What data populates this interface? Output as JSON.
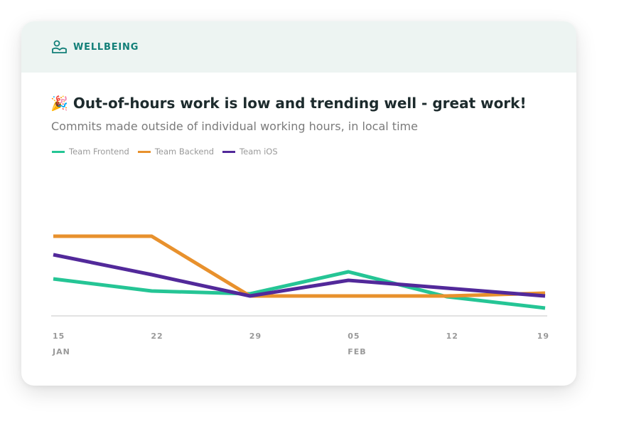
{
  "header": {
    "label": "WELLBEING",
    "icon": "person-landscape-icon",
    "accent": "#127f78"
  },
  "title": {
    "emoji": "🎉",
    "text": "Out-of-hours work is low and trending well - great work!"
  },
  "subtitle": "Commits made outside of individual working hours, in local time",
  "chart_data": {
    "type": "line",
    "title": "Out-of-hours work is low and trending well - great work!",
    "subtitle": "Commits made outside of individual working hours, in local time",
    "x": [
      "15 JAN",
      "22",
      "29",
      "05 FEB",
      "12",
      "19"
    ],
    "x_ticks": [
      {
        "day": "15",
        "month": "JAN"
      },
      {
        "day": "22",
        "month": ""
      },
      {
        "day": "29",
        "month": ""
      },
      {
        "day": "05",
        "month": "FEB"
      },
      {
        "day": "12",
        "month": ""
      },
      {
        "day": "19",
        "month": ""
      }
    ],
    "ylim": [
      0,
      19
    ],
    "grid": false,
    "legend": "top-left",
    "series": [
      {
        "name": "Team Frontend",
        "color": "#25c595",
        "values": [
          5.2,
          3.5,
          3.1,
          6.2,
          2.7,
          1.1
        ]
      },
      {
        "name": "Team Backend",
        "color": "#e8912d",
        "values": [
          11.2,
          11.2,
          2.8,
          2.8,
          2.8,
          3.2
        ]
      },
      {
        "name": "Team iOS",
        "color": "#52299a",
        "values": [
          8.6,
          5.8,
          2.8,
          5.0,
          3.9,
          2.8
        ]
      }
    ]
  }
}
